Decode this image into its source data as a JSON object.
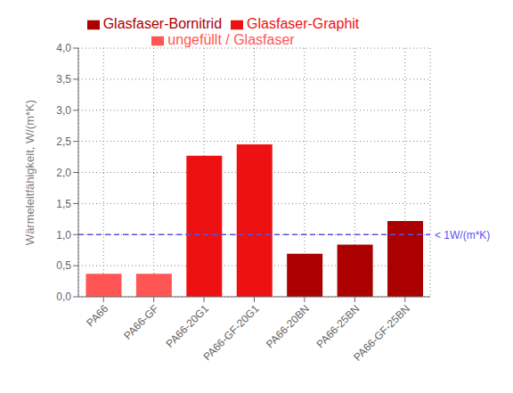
{
  "chart_data": {
    "type": "bar",
    "categories": [
      "PA66",
      "PA66-GF",
      "PA66-20G1",
      "PA66-GF-20G1",
      "PA66-20BN",
      "PA66-25BN",
      "PA66-GF-25BN"
    ],
    "series": [
      {
        "name": "ungefüllt / Glasfaser",
        "color": "#ff5555",
        "values": [
          0.37,
          0.37,
          null,
          null,
          null,
          null,
          null
        ]
      },
      {
        "name": "Glasfaser-Graphit",
        "color": "#ee1111",
        "values": [
          null,
          null,
          2.27,
          2.45,
          null,
          null,
          null
        ]
      },
      {
        "name": "Glasfaser-Bornitrid",
        "color": "#aa0000",
        "values": [
          null,
          null,
          null,
          null,
          0.69,
          0.84,
          1.22
        ]
      }
    ],
    "stacked": true,
    "ylabel": "Wärmeleitfähigkeit, W/(m*K)",
    "ylim": [
      0,
      4.0
    ],
    "yticks": [
      {
        "value": 0.0,
        "label": "0,0"
      },
      {
        "value": 0.5,
        "label": "0,5"
      },
      {
        "value": 1.0,
        "label": "1,0"
      },
      {
        "value": 1.5,
        "label": "1,5"
      },
      {
        "value": 2.0,
        "label": "2,0"
      },
      {
        "value": 2.5,
        "label": "2,5"
      },
      {
        "value": 3.0,
        "label": "3,0"
      },
      {
        "value": 3.5,
        "label": "3,5"
      },
      {
        "value": 4.0,
        "label": "4,0"
      }
    ],
    "grid": true,
    "legend": "top",
    "annotations": [
      {
        "type": "hline",
        "y": 1.0,
        "label": "< 1W/(m*K)",
        "color": "#5555ee"
      }
    ]
  }
}
